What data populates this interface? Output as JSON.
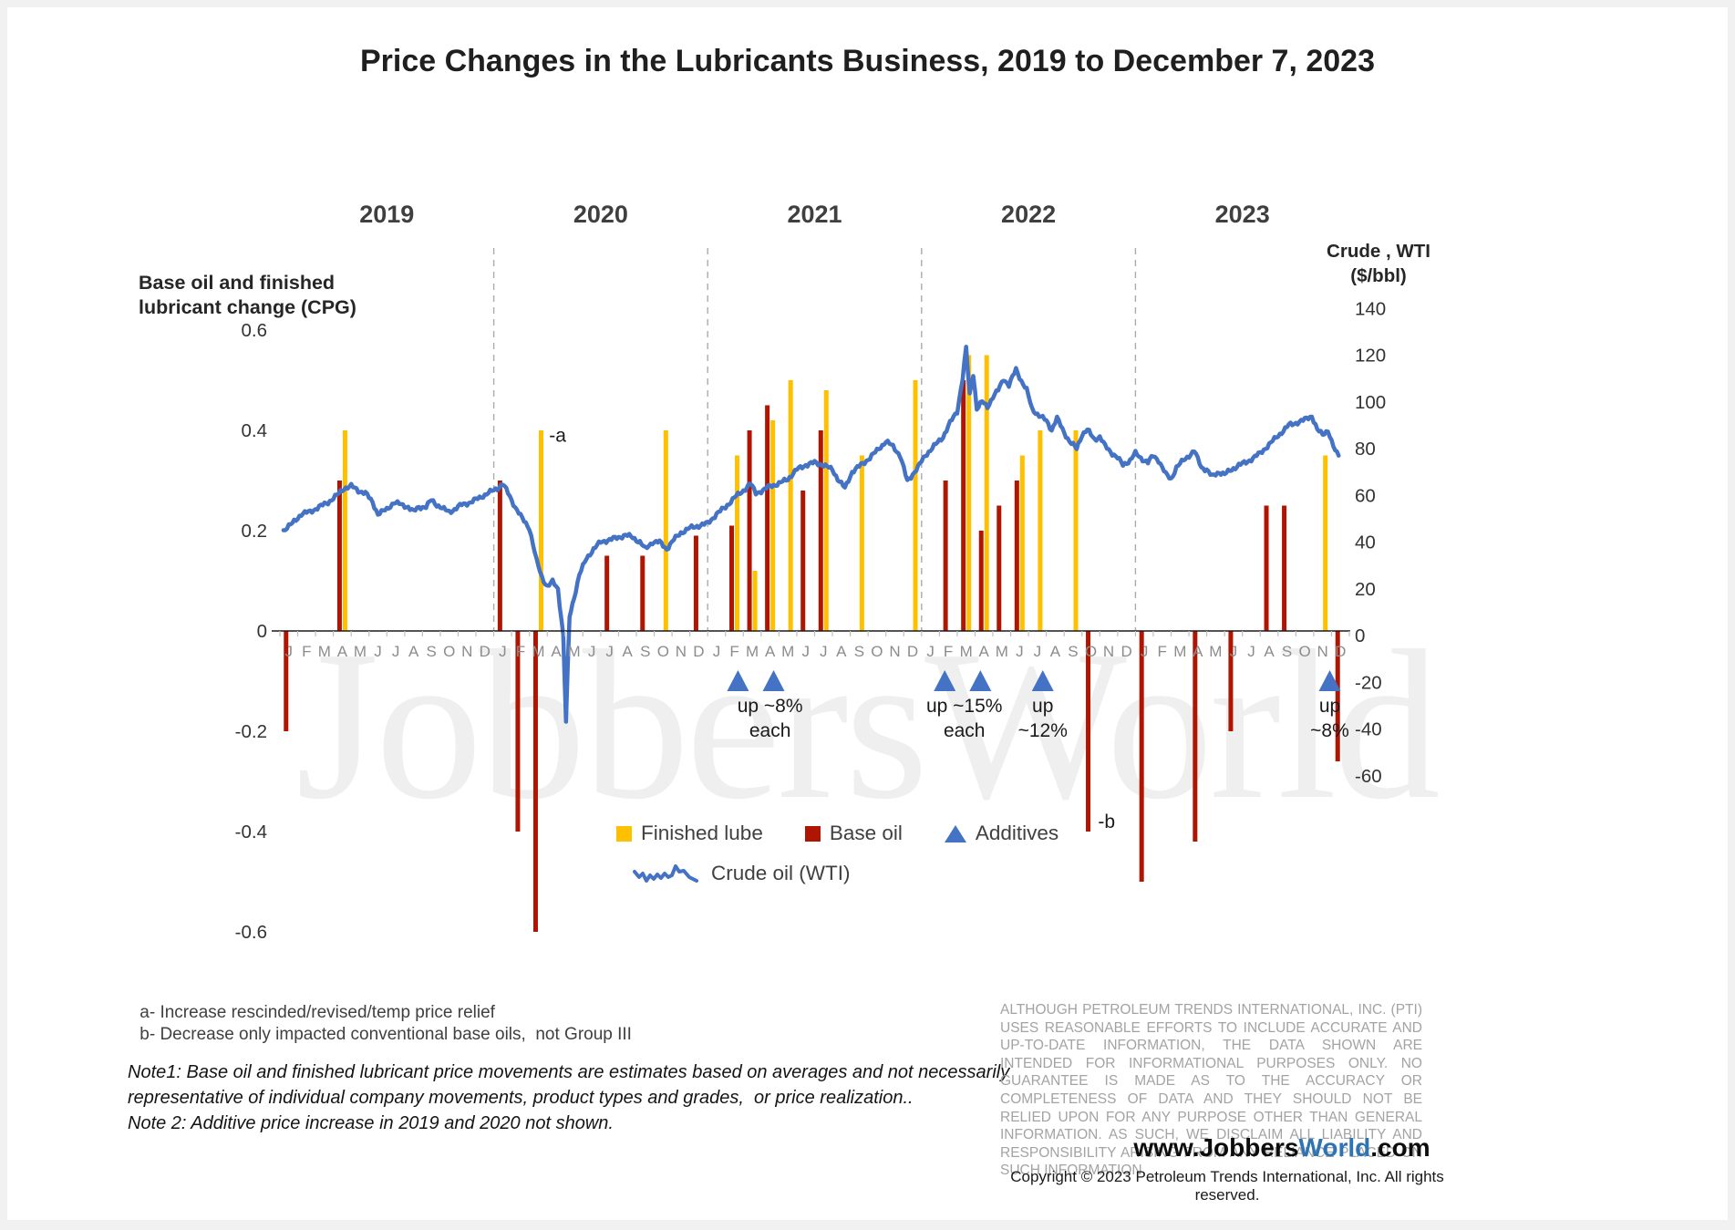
{
  "title": "Price Changes in the Lubricants Business, 2019 to December 7, 2023",
  "watermark": "JobbersWorld",
  "legend": {
    "finished_lube": "Finished lube",
    "base_oil": "Base oil",
    "additives": "Additives",
    "crude": "Crude oil (WTI)"
  },
  "footnotes": {
    "a": " a- Increase rescinded/revised/temp price relief",
    "b": " b- Decrease only impacted conventional base oils,  not Group III",
    "note1_lines": [
      "Note1: Base oil and finished lubricant price movements are estimates based on averages and not necessarily",
      "representative of individual company movements, product types and grades,  or price realization.."
    ],
    "note2": "Note 2: Additive price increase in 2019 and 2020 not shown."
  },
  "disclaimer": "ALTHOUGH PETROLEUM TRENDS INTERNATIONAL, INC. (PTI) USES REASONABLE EFFORTS TO INCLUDE ACCURATE AND UP-TO-DATE INFORMATION, THE DATA SHOWN ARE INTENDED FOR INFORMATIONAL PURPOSES ONLY. NO GUARANTEE IS MADE AS TO THE ACCURACY OR COMPLETENESS OF DATA AND THEY SHOULD NOT BE RELIED UPON FOR ANY PURPOSE OTHER THAN GENERAL INFORMATION. AS SUCH, WE DISCLAIM ALL LIABILITY AND RESPONSIBILITY ARISING FROM ANY RELIANCE PLACED ON SUCH INFORMATION.",
  "footer": {
    "website_prefix": "www.Jobbers",
    "website_highlight": "World",
    "website_suffix": ".com",
    "copyright": "Copyright © 2023 Petroleum Trends International, Inc. All rights reserved."
  },
  "colors": {
    "finished_lube": "#FFC000",
    "base_oil": "#B01502",
    "additives": "#4472C4",
    "crude": "#4472C4",
    "dashed": "#ABABAB",
    "axis": "#1A1A1A",
    "tick": "#BFBFBF",
    "month_label": "#8C8C8C",
    "axis_value": "#333333",
    "annotation": "#1A1A1A"
  },
  "chart_data": {
    "type": "combo (bar + line + markers)",
    "title": "Price Changes in the Lubricants Business, 2019 to December 7, 2023",
    "x_axis": {
      "years": [
        2019,
        2020,
        2021,
        2022,
        2023
      ],
      "month_letters": "JFMAMJJASOND",
      "range": [
        "2019-01",
        "2023-12"
      ],
      "year_dividers": "dashed"
    },
    "left_axis": {
      "label_lines": [
        "Base oil and finished",
        "lubricant change (CPG)"
      ],
      "ticks": [
        0.6,
        0.4,
        0.2,
        0,
        -0.2,
        -0.4,
        -0.6
      ],
      "range": [
        -0.6,
        0.6
      ]
    },
    "right_axis": {
      "label_lines": [
        "Crude , WTI",
        "($/bbl)"
      ],
      "ticks": [
        140,
        120,
        100,
        80,
        60,
        40,
        20,
        0,
        -20,
        -40,
        -60
      ],
      "range": [
        -60,
        140
      ]
    },
    "series": {
      "base_oil": {
        "name": "Base oil",
        "type": "bar",
        "axis": "left",
        "points": [
          [
            "2019-01",
            -0.2
          ],
          [
            "2019-04",
            0.3
          ],
          [
            "2020-01",
            0.3
          ],
          [
            "2020-02",
            -0.4
          ],
          [
            "2020-03",
            -0.6
          ],
          [
            "2020-07",
            0.15
          ],
          [
            "2020-09",
            0.15
          ],
          [
            "2020-12",
            0.19
          ],
          [
            "2021-02",
            0.21
          ],
          [
            "2021-03",
            0.4
          ],
          [
            "2021-04",
            0.45
          ],
          [
            "2021-06",
            0.28
          ],
          [
            "2021-07",
            0.4
          ],
          [
            "2022-02",
            0.3
          ],
          [
            "2022-03",
            0.5
          ],
          [
            "2022-04",
            0.2
          ],
          [
            "2022-05",
            0.25
          ],
          [
            "2022-06",
            0.3
          ],
          [
            "2022-10",
            -0.4
          ],
          [
            "2023-01",
            -0.5
          ],
          [
            "2023-04",
            -0.42
          ],
          [
            "2023-06",
            -0.2
          ],
          [
            "2023-08",
            0.25
          ],
          [
            "2023-09",
            0.25
          ],
          [
            "2023-12",
            -0.26
          ]
        ]
      },
      "finished_lube": {
        "name": "Finished lube",
        "type": "bar",
        "axis": "left",
        "points": [
          [
            "2019-04",
            0.4
          ],
          [
            "2020-03",
            0.4
          ],
          [
            "2020-10",
            0.4
          ],
          [
            "2021-02",
            0.35
          ],
          [
            "2021-03",
            0.12
          ],
          [
            "2021-04",
            0.42
          ],
          [
            "2021-05",
            0.5
          ],
          [
            "2021-07",
            0.48
          ],
          [
            "2021-09",
            0.35
          ],
          [
            "2021-12",
            0.5
          ],
          [
            "2022-03",
            0.55
          ],
          [
            "2022-04",
            0.55
          ],
          [
            "2022-06",
            0.35
          ],
          [
            "2022-07",
            0.4
          ],
          [
            "2022-09",
            0.4
          ],
          [
            "2023-11",
            0.35
          ]
        ]
      },
      "additives": {
        "name": "Additives",
        "type": "triangle-marker",
        "markers": [
          {
            "month": "2021-02",
            "pos": 25.7
          },
          {
            "month": "2021-04",
            "pos": 27.7
          },
          {
            "month": "2022-02",
            "pos": 37.3
          },
          {
            "month": "2022-04",
            "pos": 39.3
          },
          {
            "month": "2022-08",
            "pos": 42.8
          },
          {
            "month": "2023-12",
            "pos": 58.9
          }
        ]
      },
      "crude_wti": {
        "name": "Crude oil (WTI)",
        "type": "line",
        "axis": "right",
        "points": [
          [
            0.2,
            45
          ],
          [
            0.7,
            48
          ],
          [
            1.2,
            52
          ],
          [
            1.7,
            53
          ],
          [
            2.2,
            55
          ],
          [
            2.7,
            57
          ],
          [
            3.2,
            60
          ],
          [
            3.6,
            63
          ],
          [
            4.0,
            64
          ],
          [
            4.4,
            62
          ],
          [
            4.8,
            61
          ],
          [
            5.2,
            57
          ],
          [
            5.5,
            52
          ],
          [
            6.0,
            54
          ],
          [
            6.4,
            57
          ],
          [
            6.8,
            56
          ],
          [
            7.2,
            55
          ],
          [
            7.5,
            53
          ],
          [
            7.8,
            55
          ],
          [
            8.2,
            55
          ],
          [
            8.5,
            58
          ],
          [
            8.8,
            56
          ],
          [
            9.2,
            54
          ],
          [
            9.5,
            53
          ],
          [
            9.8,
            54
          ],
          [
            10.2,
            56
          ],
          [
            10.7,
            57
          ],
          [
            11.2,
            59
          ],
          [
            11.7,
            61
          ],
          [
            12.2,
            63
          ],
          [
            12.5,
            65
          ],
          [
            12.8,
            61
          ],
          [
            13.2,
            55
          ],
          [
            13.6,
            50
          ],
          [
            14.0,
            46
          ],
          [
            14.4,
            32
          ],
          [
            14.7,
            25
          ],
          [
            15.0,
            21
          ],
          [
            15.3,
            23
          ],
          [
            15.6,
            20
          ],
          [
            15.9,
            0
          ],
          [
            16.05,
            -37
          ],
          [
            16.25,
            8
          ],
          [
            16.5,
            16
          ],
          [
            16.8,
            26
          ],
          [
            17.2,
            33
          ],
          [
            17.6,
            37
          ],
          [
            18.0,
            40
          ],
          [
            18.5,
            41
          ],
          [
            19.0,
            42
          ],
          [
            19.4,
            43
          ],
          [
            19.8,
            42
          ],
          [
            20.2,
            40
          ],
          [
            20.5,
            37
          ],
          [
            20.9,
            40
          ],
          [
            21.3,
            40
          ],
          [
            21.7,
            37
          ],
          [
            22.1,
            41
          ],
          [
            22.5,
            44
          ],
          [
            23.0,
            46
          ],
          [
            23.5,
            47
          ],
          [
            24.0,
            48
          ],
          [
            24.5,
            52
          ],
          [
            25.0,
            55
          ],
          [
            25.5,
            59
          ],
          [
            26.0,
            62
          ],
          [
            26.4,
            65
          ],
          [
            26.7,
            61
          ],
          [
            27.1,
            62
          ],
          [
            27.5,
            64
          ],
          [
            28.0,
            65
          ],
          [
            28.5,
            67
          ],
          [
            29.0,
            71
          ],
          [
            29.5,
            73
          ],
          [
            30.0,
            74
          ],
          [
            30.5,
            73
          ],
          [
            31.0,
            71
          ],
          [
            31.3,
            67
          ],
          [
            31.7,
            63
          ],
          [
            32.1,
            70
          ],
          [
            32.6,
            73
          ],
          [
            33.1,
            76
          ],
          [
            33.6,
            80
          ],
          [
            34.0,
            83
          ],
          [
            34.4,
            81
          ],
          [
            34.8,
            77
          ],
          [
            35.2,
            66
          ],
          [
            35.5,
            69
          ],
          [
            35.8,
            72
          ],
          [
            36.2,
            77
          ],
          [
            36.7,
            81
          ],
          [
            37.2,
            85
          ],
          [
            37.6,
            91
          ],
          [
            38.0,
            96
          ],
          [
            38.3,
            110
          ],
          [
            38.5,
            123
          ],
          [
            38.7,
            103
          ],
          [
            38.9,
            112
          ],
          [
            39.1,
            97
          ],
          [
            39.4,
            100
          ],
          [
            39.7,
            98
          ],
          [
            40.0,
            102
          ],
          [
            40.3,
            105
          ],
          [
            40.6,
            110
          ],
          [
            40.9,
            107
          ],
          [
            41.3,
            114
          ],
          [
            41.6,
            109
          ],
          [
            41.9,
            105
          ],
          [
            42.2,
            97
          ],
          [
            42.6,
            94
          ],
          [
            43.0,
            92
          ],
          [
            43.3,
            88
          ],
          [
            43.6,
            93
          ],
          [
            44.0,
            87
          ],
          [
            44.3,
            83
          ],
          [
            44.7,
            80
          ],
          [
            45.0,
            86
          ],
          [
            45.3,
            88
          ],
          [
            45.7,
            84
          ],
          [
            46.0,
            85
          ],
          [
            46.3,
            81
          ],
          [
            46.7,
            78
          ],
          [
            47.0,
            76
          ],
          [
            47.3,
            73
          ],
          [
            47.7,
            75
          ],
          [
            48.0,
            78
          ],
          [
            48.3,
            76
          ],
          [
            48.7,
            74
          ],
          [
            49.0,
            77
          ],
          [
            49.3,
            75
          ],
          [
            49.7,
            69
          ],
          [
            50.0,
            67
          ],
          [
            50.3,
            72
          ],
          [
            50.7,
            75
          ],
          [
            51.0,
            77
          ],
          [
            51.3,
            79
          ],
          [
            51.7,
            72
          ],
          [
            52.0,
            71
          ],
          [
            52.3,
            68
          ],
          [
            52.7,
            70
          ],
          [
            53.0,
            69
          ],
          [
            53.4,
            71
          ],
          [
            53.8,
            73
          ],
          [
            54.2,
            74
          ],
          [
            54.6,
            76
          ],
          [
            55.0,
            78
          ],
          [
            55.4,
            81
          ],
          [
            55.8,
            84
          ],
          [
            56.2,
            87
          ],
          [
            56.6,
            90
          ],
          [
            57.0,
            91
          ],
          [
            57.4,
            92
          ],
          [
            57.9,
            94
          ],
          [
            58.2,
            88
          ],
          [
            58.5,
            86
          ],
          [
            58.8,
            88
          ],
          [
            59.0,
            83
          ],
          [
            59.2,
            79
          ],
          [
            59.4,
            77
          ]
        ]
      }
    },
    "annotations": [
      {
        "id": "a-flag",
        "text": "-a",
        "pos": 15.1,
        "v": 0.39
      },
      {
        "id": "b-flag",
        "text": "-b",
        "pos": 45.9,
        "v": -0.38
      },
      {
        "id": "additives-2021",
        "text_lines": [
          "up ~8%",
          "each"
        ],
        "pos": 27.5
      },
      {
        "id": "additives-2022a",
        "text_lines": [
          "up ~15%",
          "each"
        ],
        "pos": 38.4
      },
      {
        "id": "additives-2022b",
        "text_lines": [
          "up",
          "~12%"
        ],
        "pos": 42.8
      },
      {
        "id": "additives-2023",
        "text_lines": [
          "up",
          "~8%"
        ],
        "pos": 58.9
      }
    ]
  }
}
